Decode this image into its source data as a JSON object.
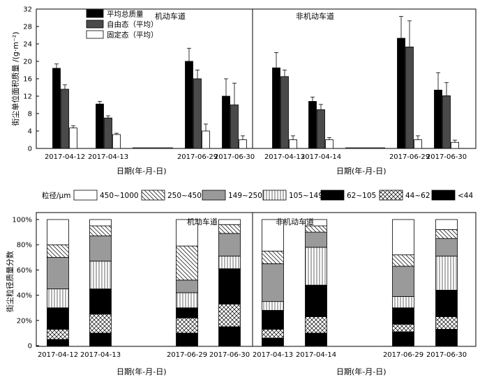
{
  "chart_data": [
    {
      "type": "bar",
      "ylabel": "街尘单位面积质量 /(g·m⁻²)",
      "xlabel": "日期(年-月-日)",
      "ylim": [
        0,
        32
      ],
      "yticks": [
        0,
        4,
        8,
        12,
        16,
        20,
        24,
        28,
        32
      ],
      "legend_position": "top-left",
      "panels": [
        {
          "label": "机动车道",
          "dates": [
            "2017-04-12",
            "2017-04-13",
            "2017-06-29",
            "2017-06-30"
          ]
        },
        {
          "label": "非机动车道",
          "dates": [
            "2017-04-13",
            "2017-04-14",
            "2017-06-29",
            "2017-06-30"
          ]
        }
      ],
      "series": [
        {
          "name": "平均总质量",
          "color": "#000000",
          "values": [
            [
              18.4,
              10.2,
              20.0,
              12.0
            ],
            [
              18.5,
              10.8,
              25.3,
              13.4
            ]
          ],
          "errors": [
            [
              1.0,
              0.6,
              3.0,
              4.0
            ],
            [
              3.5,
              1.0,
              5.0,
              4.0
            ]
          ]
        },
        {
          "name": "自由态（平均）",
          "color": "#4a4a4a",
          "values": [
            [
              13.6,
              7.0,
              16.0,
              10.0
            ],
            [
              16.5,
              8.9,
              23.3,
              12.1
            ]
          ],
          "errors": [
            [
              1.0,
              0.5,
              2.0,
              5.0
            ],
            [
              1.5,
              1.2,
              6.0,
              3.0
            ]
          ]
        },
        {
          "name": "固定态（平均）",
          "color": "#ffffff",
          "values": [
            [
              4.7,
              3.2,
              4.0,
              2.0
            ],
            [
              2.0,
              2.0,
              2.0,
              1.4
            ]
          ],
          "errors": [
            [
              0.5,
              0.3,
              1.6,
              0.9
            ],
            [
              0.9,
              0.5,
              0.9,
              0.5
            ]
          ]
        }
      ]
    },
    {
      "type": "bar",
      "stacked": true,
      "ylabel": "街尘粒径质量分数",
      "xlabel": "日期(年-月-日)",
      "ylim": [
        0,
        100
      ],
      "yticks": [
        "0",
        "20%",
        "40%",
        "60%",
        "80%",
        "100%"
      ],
      "legend_title": "粒径/μm",
      "legend_position": "top",
      "panels": [
        {
          "label": "机动车道",
          "dates": [
            "2017-04-12",
            "2017-04-13",
            "2017-06-29",
            "2017-06-30"
          ]
        },
        {
          "label": "非机动车道",
          "dates": [
            "2017-04-13",
            "2017-04-14",
            "2017-06-29",
            "2017-06-30"
          ]
        }
      ],
      "series": [
        {
          "name": "<44",
          "pattern": "black",
          "values": [
            [
              5,
              10,
              10,
              15
            ],
            [
              6,
              10,
              11,
              13
            ]
          ]
        },
        {
          "name": "44~62",
          "pattern": "crosshatch",
          "values": [
            [
              8,
              15,
              12,
              18
            ],
            [
              7,
              13,
              6,
              10
            ]
          ]
        },
        {
          "name": "62~105",
          "pattern": "black",
          "values": [
            [
              17,
              20,
              8,
              28
            ],
            [
              15,
              25,
              13,
              21
            ]
          ]
        },
        {
          "name": "105~149",
          "pattern": "vertical-lines",
          "values": [
            [
              15,
              22,
              12,
              10
            ],
            [
              7,
              30,
              9,
              27
            ]
          ]
        },
        {
          "name": "149~250",
          "pattern": "gray",
          "values": [
            [
              25,
              20,
              10,
              18
            ],
            [
              30,
              12,
              24,
              14
            ]
          ]
        },
        {
          "name": "250~450",
          "pattern": "diagonal",
          "values": [
            [
              10,
              8,
              27,
              7
            ],
            [
              10,
              5,
              9,
              7
            ]
          ]
        },
        {
          "name": "450~1000",
          "pattern": "white",
          "values": [
            [
              20,
              5,
              21,
              4
            ],
            [
              25,
              5,
              28,
              8
            ]
          ]
        }
      ],
      "legend_order": [
        "450~1000",
        "250~450",
        "149~250",
        "105~149",
        "62~105",
        "44~62",
        "<44"
      ]
    }
  ]
}
